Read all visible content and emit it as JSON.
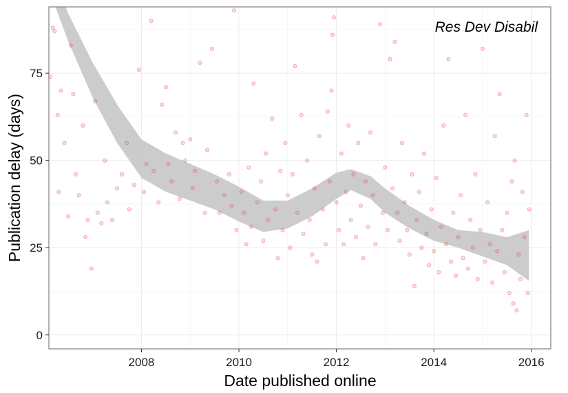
{
  "chart_data": {
    "type": "scatter",
    "title": "",
    "annotation": "Res Dev Disabil",
    "xlabel": "Date published online",
    "ylabel": "Publication delay (days)",
    "xlim": [
      2006.1,
      2016.4
    ],
    "ylim": [
      -4,
      94
    ],
    "x_ticks": [
      2008,
      2010,
      2012,
      2014,
      2016
    ],
    "y_ticks": [
      0,
      25,
      50,
      75
    ],
    "grid": true,
    "legend": "none",
    "point_color": "#e8413c",
    "band_color": "#c9c9c9",
    "smooth_band": {
      "x": [
        2006.1,
        2006.5,
        2007.0,
        2007.5,
        2008.0,
        2008.5,
        2009.0,
        2009.5,
        2010.0,
        2010.5,
        2011.0,
        2011.5,
        2012.0,
        2012.3,
        2012.7,
        2013.0,
        2013.5,
        2014.0,
        2014.5,
        2015.0,
        2015.5,
        2015.95
      ],
      "lower": [
        99,
        84,
        68,
        55,
        45,
        41,
        38.5,
        36,
        32.5,
        29.5,
        30.5,
        34,
        39,
        41.5,
        39,
        35,
        30.5,
        27,
        25,
        22.5,
        20,
        15.5
      ],
      "upper": [
        107,
        92,
        78,
        66,
        56,
        52,
        49,
        46,
        42.5,
        38.5,
        38.5,
        42,
        46.5,
        47.5,
        45.5,
        42,
        37,
        33,
        30,
        29.5,
        28,
        30
      ]
    },
    "series": [
      {
        "points": [
          [
            2006.13,
            74
          ],
          [
            2006.18,
            88
          ],
          [
            2006.22,
            87
          ],
          [
            2006.28,
            63
          ],
          [
            2006.3,
            41
          ],
          [
            2006.35,
            70
          ],
          [
            2006.42,
            55
          ],
          [
            2006.5,
            34
          ],
          [
            2006.55,
            83
          ],
          [
            2006.6,
            69
          ],
          [
            2006.65,
            46
          ],
          [
            2006.72,
            40
          ],
          [
            2006.8,
            60
          ],
          [
            2006.85,
            28
          ],
          [
            2006.9,
            33
          ],
          [
            2006.97,
            19
          ],
          [
            2007.05,
            67
          ],
          [
            2007.1,
            35
          ],
          [
            2007.18,
            32
          ],
          [
            2007.25,
            50
          ],
          [
            2007.3,
            38
          ],
          [
            2007.4,
            33
          ],
          [
            2007.5,
            42
          ],
          [
            2007.6,
            46
          ],
          [
            2007.7,
            55
          ],
          [
            2007.75,
            36
          ],
          [
            2007.85,
            43
          ],
          [
            2007.95,
            76
          ],
          [
            2008.05,
            41
          ],
          [
            2008.1,
            49
          ],
          [
            2008.2,
            90
          ],
          [
            2008.25,
            47
          ],
          [
            2008.35,
            38
          ],
          [
            2008.42,
            66
          ],
          [
            2008.5,
            71
          ],
          [
            2008.55,
            49
          ],
          [
            2008.62,
            44
          ],
          [
            2008.7,
            58
          ],
          [
            2008.78,
            39
          ],
          [
            2008.85,
            55
          ],
          [
            2008.9,
            50
          ],
          [
            2009.0,
            56
          ],
          [
            2009.05,
            42
          ],
          [
            2009.1,
            47
          ],
          [
            2009.2,
            78
          ],
          [
            2009.3,
            35
          ],
          [
            2009.35,
            53
          ],
          [
            2009.45,
            82
          ],
          [
            2009.55,
            44
          ],
          [
            2009.6,
            35
          ],
          [
            2009.7,
            40
          ],
          [
            2009.8,
            46
          ],
          [
            2009.85,
            37
          ],
          [
            2009.9,
            93
          ],
          [
            2009.95,
            30
          ],
          [
            2010.05,
            41
          ],
          [
            2010.1,
            35
          ],
          [
            2010.15,
            26
          ],
          [
            2010.2,
            48
          ],
          [
            2010.25,
            31
          ],
          [
            2010.3,
            72
          ],
          [
            2010.38,
            38
          ],
          [
            2010.45,
            44
          ],
          [
            2010.5,
            27
          ],
          [
            2010.55,
            52
          ],
          [
            2010.6,
            33
          ],
          [
            2010.68,
            62
          ],
          [
            2010.75,
            36
          ],
          [
            2010.8,
            22
          ],
          [
            2010.85,
            47
          ],
          [
            2010.9,
            30
          ],
          [
            2010.95,
            55
          ],
          [
            2011.0,
            40
          ],
          [
            2011.05,
            25
          ],
          [
            2011.1,
            46
          ],
          [
            2011.15,
            77
          ],
          [
            2011.2,
            35
          ],
          [
            2011.28,
            63
          ],
          [
            2011.32,
            29
          ],
          [
            2011.4,
            50
          ],
          [
            2011.45,
            33
          ],
          [
            2011.5,
            23
          ],
          [
            2011.55,
            42
          ],
          [
            2011.6,
            21
          ],
          [
            2011.65,
            57
          ],
          [
            2011.72,
            36
          ],
          [
            2011.78,
            26
          ],
          [
            2011.82,
            64
          ],
          [
            2011.86,
            44
          ],
          [
            2011.9,
            70
          ],
          [
            2011.92,
            86
          ],
          [
            2011.95,
            91
          ],
          [
            2012.0,
            38
          ],
          [
            2012.05,
            30
          ],
          [
            2012.1,
            52
          ],
          [
            2012.15,
            26
          ],
          [
            2012.2,
            41
          ],
          [
            2012.25,
            60
          ],
          [
            2012.3,
            33
          ],
          [
            2012.35,
            46
          ],
          [
            2012.4,
            28
          ],
          [
            2012.45,
            55
          ],
          [
            2012.5,
            37
          ],
          [
            2012.55,
            22
          ],
          [
            2012.6,
            44
          ],
          [
            2012.65,
            31
          ],
          [
            2012.7,
            58
          ],
          [
            2012.75,
            40
          ],
          [
            2012.8,
            26
          ],
          [
            2012.9,
            89
          ],
          [
            2012.95,
            35
          ],
          [
            2013.0,
            48
          ],
          [
            2013.05,
            30
          ],
          [
            2013.1,
            79
          ],
          [
            2013.15,
            42
          ],
          [
            2013.2,
            84
          ],
          [
            2013.25,
            35
          ],
          [
            2013.3,
            27
          ],
          [
            2013.35,
            55
          ],
          [
            2013.4,
            38
          ],
          [
            2013.45,
            30
          ],
          [
            2013.5,
            23
          ],
          [
            2013.55,
            46
          ],
          [
            2013.6,
            14
          ],
          [
            2013.65,
            33
          ],
          [
            2013.7,
            41
          ],
          [
            2013.75,
            25
          ],
          [
            2013.8,
            52
          ],
          [
            2013.85,
            29
          ],
          [
            2013.9,
            20
          ],
          [
            2013.95,
            36
          ],
          [
            2014.0,
            24
          ],
          [
            2014.05,
            45
          ],
          [
            2014.1,
            18
          ],
          [
            2014.15,
            31
          ],
          [
            2014.2,
            60
          ],
          [
            2014.25,
            26
          ],
          [
            2014.3,
            79
          ],
          [
            2014.35,
            21
          ],
          [
            2014.4,
            35
          ],
          [
            2014.45,
            17
          ],
          [
            2014.5,
            28
          ],
          [
            2014.55,
            40
          ],
          [
            2014.6,
            22
          ],
          [
            2014.65,
            63
          ],
          [
            2014.7,
            19
          ],
          [
            2014.75,
            33
          ],
          [
            2014.8,
            25
          ],
          [
            2014.85,
            46
          ],
          [
            2014.9,
            16
          ],
          [
            2014.95,
            30
          ],
          [
            2015.0,
            82
          ],
          [
            2015.05,
            21
          ],
          [
            2015.1,
            38
          ],
          [
            2015.15,
            26
          ],
          [
            2015.2,
            15
          ],
          [
            2015.25,
            57
          ],
          [
            2015.3,
            24
          ],
          [
            2015.35,
            69
          ],
          [
            2015.4,
            30
          ],
          [
            2015.45,
            18
          ],
          [
            2015.5,
            35
          ],
          [
            2015.55,
            12
          ],
          [
            2015.6,
            44
          ],
          [
            2015.63,
            9
          ],
          [
            2015.66,
            50
          ],
          [
            2015.7,
            7
          ],
          [
            2015.74,
            23
          ],
          [
            2015.78,
            16
          ],
          [
            2015.82,
            41
          ],
          [
            2015.86,
            28
          ],
          [
            2015.9,
            63
          ],
          [
            2015.93,
            12
          ],
          [
            2015.96,
            36
          ]
        ]
      }
    ]
  }
}
